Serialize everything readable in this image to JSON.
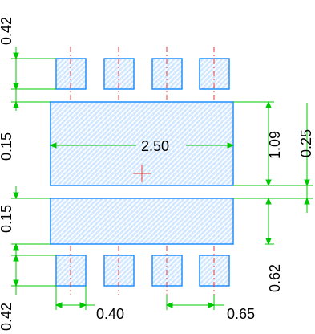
{
  "colors": {
    "pad_outline": "#1e8fff",
    "pad_fill": "#cfe6ff",
    "hatch": "#ffffff",
    "dimension": "#00c800",
    "centerline": "#e83a3a",
    "text": "#000000"
  },
  "icons": {
    "origin": "crosshair-icon"
  },
  "dimensions": {
    "top_pad_height": "0.42",
    "top_gap": "0.15",
    "center_gap": "0.15",
    "bottom_pad_height": "0.42",
    "pad_width": "0.40",
    "pitch": "0.65",
    "large_pad_width": "2.50",
    "large_pad_height": "1.09",
    "large_pad_gap": "0.25",
    "pad_offset": "0.62"
  }
}
